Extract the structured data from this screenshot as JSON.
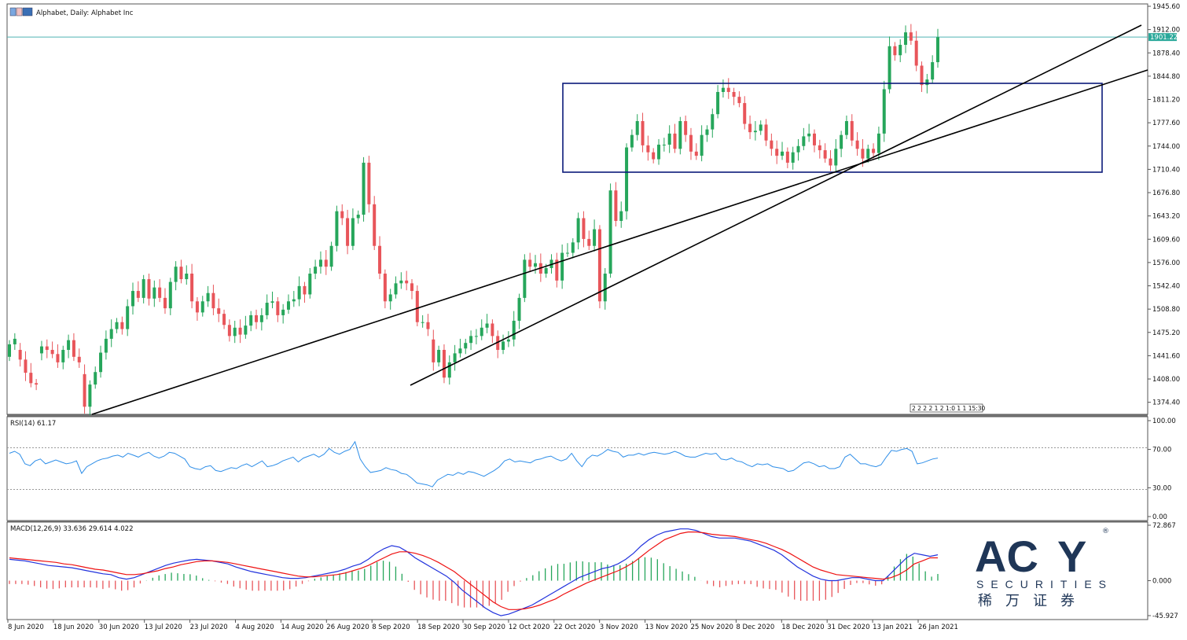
{
  "window": {
    "title": "Alphabet, Daily:  Alphabet Inc"
  },
  "colors": {
    "bull": "#26a65b",
    "bear": "#e8555a",
    "price_line": "#4fb3b3",
    "rsi_line": "#2e8ee8",
    "macd_line": "#2233dd",
    "signal_line": "#e11",
    "box": "#0b1a7a",
    "trend": "#000000",
    "logo": "#1f3657"
  },
  "time_badge": "2 2 2 2 1 2 1:0 1 1 15:30",
  "chart_data": {
    "type": "candlestick",
    "title": "Alphabet, Daily:  Alphabet Inc",
    "price_axis": {
      "min": 1357.0,
      "max": 1945.6,
      "ticks": [
        "1945.60",
        "1912.00",
        "1878.40",
        "1844.80",
        "1811.20",
        "1777.60",
        "1744.00",
        "1710.40",
        "1676.80",
        "1643.20",
        "1609.60",
        "1576.00",
        "1542.40",
        "1508.80",
        "1475.20",
        "1441.60",
        "1408.00",
        "1374.40"
      ]
    },
    "current_price": "1901.22",
    "x_labels": [
      "8 Jun 2020",
      "18 Jun 2020",
      "30 Jun 2020",
      "13 Jul 2020",
      "23 Jul 2020",
      "4 Aug 2020",
      "14 Aug 2020",
      "26 Aug 2020",
      "8 Sep 2020",
      "18 Sep 2020",
      "30 Sep 2020",
      "12 Oct 2020",
      "22 Oct 2020",
      "3 Nov 2020",
      "13 Nov 2020",
      "25 Nov 2020",
      "8 Dec 2020",
      "18 Dec 2020",
      "31 Dec 2020",
      "13 Jan 2021",
      "26 Jan 2021"
    ],
    "candles": [
      [
        1440,
        1458
      ],
      [
        1458,
        1466
      ],
      [
        1450,
        1436
      ],
      [
        1436,
        1417
      ],
      [
        1417,
        1402
      ],
      [
        1402,
        1400
      ],
      [
        1445,
        1455
      ],
      [
        1455,
        1450
      ],
      [
        1450,
        1444
      ],
      [
        1444,
        1432
      ],
      [
        1432,
        1450
      ],
      [
        1450,
        1464
      ],
      [
        1464,
        1440
      ],
      [
        1440,
        1432
      ],
      [
        1415,
        1368
      ],
      [
        1368,
        1400
      ],
      [
        1400,
        1418
      ],
      [
        1418,
        1446
      ],
      [
        1446,
        1466
      ],
      [
        1466,
        1480
      ],
      [
        1480,
        1490
      ],
      [
        1490,
        1480
      ],
      [
        1480,
        1513
      ],
      [
        1513,
        1535
      ],
      [
        1535,
        1525
      ],
      [
        1525,
        1552
      ],
      [
        1552,
        1524
      ],
      [
        1524,
        1540
      ],
      [
        1540,
        1525
      ],
      [
        1525,
        1510
      ],
      [
        1510,
        1548
      ],
      [
        1548,
        1570
      ],
      [
        1570,
        1552
      ],
      [
        1552,
        1560
      ],
      [
        1560,
        1520
      ],
      [
        1520,
        1504
      ],
      [
        1504,
        1520
      ],
      [
        1520,
        1532
      ],
      [
        1532,
        1510
      ],
      [
        1510,
        1502
      ],
      [
        1502,
        1486
      ],
      [
        1486,
        1470
      ],
      [
        1470,
        1482
      ],
      [
        1482,
        1472
      ],
      [
        1472,
        1485
      ],
      [
        1485,
        1500
      ],
      [
        1500,
        1490
      ],
      [
        1490,
        1500
      ],
      [
        1500,
        1518
      ],
      [
        1518,
        1520
      ],
      [
        1520,
        1500
      ],
      [
        1500,
        1508
      ],
      [
        1508,
        1520
      ],
      [
        1520,
        1523
      ],
      [
        1523,
        1542
      ],
      [
        1542,
        1530
      ],
      [
        1530,
        1560
      ],
      [
        1560,
        1570
      ],
      [
        1570,
        1580
      ],
      [
        1580,
        1570
      ],
      [
        1570,
        1600
      ],
      [
        1600,
        1650
      ],
      [
        1650,
        1640
      ],
      [
        1640,
        1600
      ],
      [
        1600,
        1640
      ],
      [
        1640,
        1645
      ],
      [
        1645,
        1720
      ],
      [
        1720,
        1660
      ],
      [
        1660,
        1600
      ],
      [
        1600,
        1560
      ],
      [
        1560,
        1520
      ],
      [
        1520,
        1530
      ],
      [
        1530,
        1546
      ],
      [
        1546,
        1550
      ],
      [
        1550,
        1546
      ],
      [
        1546,
        1535
      ],
      [
        1535,
        1490
      ],
      [
        1490,
        1490
      ],
      [
        1490,
        1480
      ],
      [
        1465,
        1432
      ],
      [
        1432,
        1450
      ],
      [
        1450,
        1410
      ],
      [
        1410,
        1432
      ],
      [
        1432,
        1445
      ],
      [
        1445,
        1452
      ],
      [
        1452,
        1460
      ],
      [
        1460,
        1470
      ],
      [
        1470,
        1470
      ],
      [
        1470,
        1482
      ],
      [
        1482,
        1488
      ],
      [
        1488,
        1470
      ],
      [
        1470,
        1450
      ],
      [
        1450,
        1462
      ],
      [
        1462,
        1465
      ],
      [
        1465,
        1492
      ],
      [
        1492,
        1525
      ],
      [
        1525,
        1580
      ],
      [
        1580,
        1570
      ],
      [
        1570,
        1575
      ],
      [
        1575,
        1560
      ],
      [
        1560,
        1568
      ],
      [
        1568,
        1580
      ],
      [
        1580,
        1550
      ],
      [
        1550,
        1590
      ],
      [
        1590,
        1590
      ],
      [
        1590,
        1605
      ],
      [
        1605,
        1640
      ],
      [
        1640,
        1610
      ],
      [
        1610,
        1600
      ],
      [
        1600,
        1624
      ],
      [
        1624,
        1520
      ],
      [
        1520,
        1560
      ],
      [
        1560,
        1680
      ],
      [
        1680,
        1636
      ],
      [
        1636,
        1650
      ],
      [
        1650,
        1742
      ],
      [
        1742,
        1760
      ],
      [
        1760,
        1780
      ],
      [
        1780,
        1745
      ],
      [
        1745,
        1735
      ],
      [
        1735,
        1725
      ],
      [
        1725,
        1746
      ],
      [
        1746,
        1746
      ],
      [
        1746,
        1762
      ],
      [
        1762,
        1740
      ],
      [
        1740,
        1780
      ],
      [
        1780,
        1760
      ],
      [
        1760,
        1736
      ],
      [
        1736,
        1730
      ],
      [
        1730,
        1760
      ],
      [
        1760,
        1768
      ],
      [
        1768,
        1790
      ],
      [
        1790,
        1822
      ],
      [
        1822,
        1828
      ],
      [
        1828,
        1822
      ],
      [
        1822,
        1815
      ],
      [
        1815,
        1806
      ],
      [
        1806,
        1776
      ],
      [
        1776,
        1764
      ],
      [
        1764,
        1766
      ],
      [
        1766,
        1775
      ],
      [
        1775,
        1752
      ],
      [
        1752,
        1740
      ],
      [
        1740,
        1730
      ],
      [
        1730,
        1736
      ],
      [
        1736,
        1720
      ],
      [
        1720,
        1735
      ],
      [
        1735,
        1744
      ],
      [
        1744,
        1758
      ],
      [
        1758,
        1762
      ],
      [
        1762,
        1745
      ],
      [
        1745,
        1738
      ],
      [
        1738,
        1726
      ],
      [
        1726,
        1716
      ],
      [
        1716,
        1740
      ],
      [
        1740,
        1760
      ],
      [
        1760,
        1780
      ],
      [
        1780,
        1752
      ],
      [
        1752,
        1740
      ],
      [
        1740,
        1726
      ],
      [
        1726,
        1740
      ],
      [
        1740,
        1734
      ],
      [
        1734,
        1762
      ],
      [
        1762,
        1826
      ],
      [
        1826,
        1888
      ],
      [
        1888,
        1875
      ],
      [
        1875,
        1890
      ],
      [
        1890,
        1908
      ],
      [
        1908,
        1896
      ],
      [
        1896,
        1860
      ],
      [
        1860,
        1832
      ],
      [
        1832,
        1840
      ],
      [
        1840,
        1865
      ],
      [
        1865,
        1901
      ]
    ],
    "rsi": {
      "label": "RSI(14) 61.17",
      "levels": [
        "100.00",
        "70.00",
        "30.00",
        "0.00"
      ],
      "values": [
        66,
        68,
        65,
        55,
        53,
        58,
        60,
        55,
        57,
        59,
        57,
        55,
        56,
        58,
        45,
        52,
        55,
        58,
        60,
        61,
        63,
        64,
        62,
        66,
        64,
        62,
        65,
        67,
        63,
        61,
        63,
        67,
        66,
        63,
        60,
        52,
        50,
        49,
        52,
        53,
        48,
        47,
        49,
        51,
        50,
        53,
        55,
        52,
        55,
        58,
        52,
        53,
        55,
        58,
        60,
        62,
        57,
        61,
        63,
        65,
        62,
        65,
        71,
        67,
        65,
        68,
        70,
        78,
        60,
        52,
        46,
        47,
        48,
        51,
        49,
        48,
        45,
        44,
        40,
        35,
        34,
        33,
        31,
        38,
        41,
        44,
        43,
        46,
        44,
        47,
        46,
        44,
        42,
        45,
        48,
        52,
        58,
        60,
        57,
        58,
        57,
        56,
        59,
        60,
        62,
        63,
        60,
        58,
        60,
        66,
        58,
        52,
        60,
        64,
        63,
        66,
        70,
        68,
        67,
        62,
        64,
        64,
        66,
        64,
        66,
        67,
        66,
        65,
        66,
        68,
        66,
        63,
        62,
        62,
        64,
        66,
        65,
        66,
        60,
        59,
        61,
        58,
        57,
        54,
        52,
        55,
        54,
        55,
        52,
        51,
        50,
        47,
        48,
        52,
        56,
        57,
        55,
        52,
        53,
        50,
        50,
        52,
        62,
        65,
        60,
        55,
        55,
        53,
        52,
        54,
        62,
        69,
        68,
        70,
        71,
        68,
        55,
        56,
        58,
        60,
        61
      ]
    },
    "macd": {
      "label": "MACD(12,26,9) 33.636 29.614 4.022",
      "levels": [
        "72.867",
        "0.000",
        "-45.927"
      ],
      "macd": [
        28,
        27,
        26,
        24,
        22,
        20,
        19,
        18,
        17,
        15,
        13,
        11,
        9,
        8,
        4,
        2,
        4,
        8,
        12,
        16,
        20,
        23,
        25,
        27,
        28,
        27,
        26,
        24,
        22,
        18,
        15,
        12,
        10,
        8,
        6,
        4,
        3,
        3,
        4,
        6,
        8,
        10,
        12,
        15,
        19,
        22,
        28,
        36,
        42,
        46,
        44,
        38,
        30,
        24,
        18,
        12,
        6,
        -2,
        -12,
        -20,
        -28,
        -36,
        -42,
        -46,
        -44,
        -40,
        -36,
        -32,
        -26,
        -20,
        -14,
        -8,
        -2,
        4,
        8,
        12,
        16,
        18,
        22,
        28,
        36,
        46,
        54,
        60,
        64,
        66,
        68,
        68,
        66,
        62,
        58,
        56,
        56,
        56,
        54,
        52,
        48,
        44,
        40,
        34,
        26,
        18,
        12,
        6,
        2,
        0,
        0,
        2,
        4,
        4,
        2,
        0,
        0,
        10,
        20,
        30,
        36,
        34,
        32,
        34
      ],
      "signal": [
        30,
        29,
        28,
        27,
        26,
        25,
        24,
        22,
        21,
        19,
        17,
        15,
        14,
        12,
        10,
        8,
        8,
        9,
        11,
        13,
        16,
        18,
        21,
        23,
        25,
        26,
        26,
        25,
        24,
        22,
        20,
        18,
        16,
        14,
        12,
        10,
        8,
        6,
        5,
        5,
        6,
        7,
        8,
        10,
        13,
        16,
        20,
        25,
        30,
        35,
        38,
        38,
        36,
        33,
        29,
        24,
        18,
        12,
        4,
        -4,
        -12,
        -20,
        -28,
        -34,
        -38,
        -38,
        -37,
        -35,
        -32,
        -28,
        -24,
        -18,
        -13,
        -8,
        -3,
        1,
        5,
        9,
        13,
        18,
        24,
        32,
        40,
        47,
        54,
        58,
        62,
        64,
        64,
        63,
        61,
        60,
        59,
        58,
        56,
        54,
        52,
        49,
        45,
        41,
        36,
        30,
        24,
        18,
        14,
        11,
        8,
        7,
        6,
        5,
        4,
        3,
        2,
        4,
        8,
        14,
        22,
        26,
        30,
        30
      ]
    }
  },
  "logo": {
    "brand": "AC",
    "brand_suffix": "Y",
    "trademark": "®",
    "subtitle": "SECURITIES",
    "chinese": "稀万证券"
  }
}
